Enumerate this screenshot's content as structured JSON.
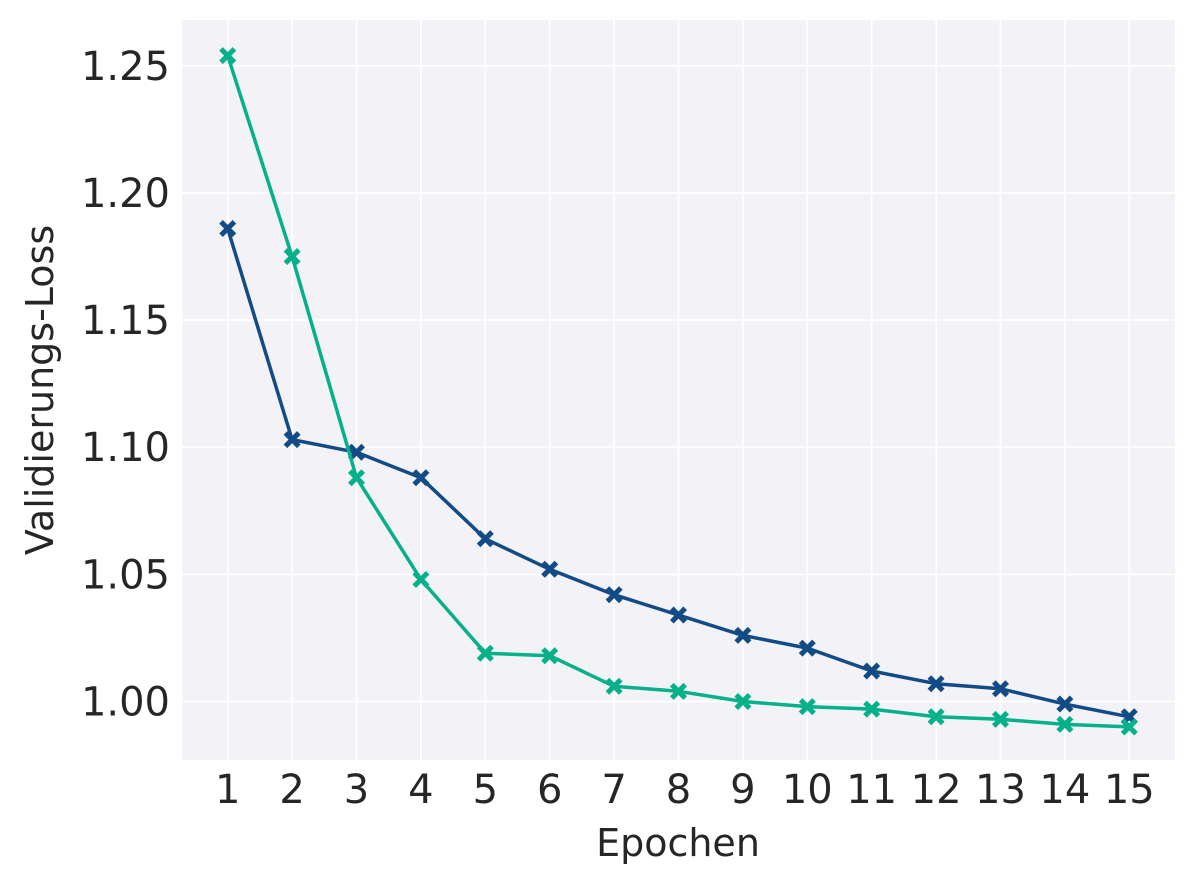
{
  "chart_data": {
    "type": "line",
    "xlabel": "Epochen",
    "ylabel": "Validierungs-Loss",
    "x": [
      1,
      2,
      3,
      4,
      5,
      6,
      7,
      8,
      9,
      10,
      11,
      12,
      13,
      14,
      15
    ],
    "xticks": [
      "1",
      "2",
      "3",
      "4",
      "5",
      "6",
      "7",
      "8",
      "9",
      "10",
      "11",
      "12",
      "13",
      "14",
      "15"
    ],
    "yticks": [
      "1.00",
      "1.05",
      "1.10",
      "1.15",
      "1.20",
      "1.25"
    ],
    "ylim": [
      0.977,
      1.268
    ],
    "xlim": [
      0.29,
      15.71
    ],
    "grid": true,
    "background": "#f2f2f7",
    "series": [
      {
        "color": "#134b86",
        "marker": "X",
        "values": [
          1.186,
          1.103,
          1.098,
          1.088,
          1.064,
          1.052,
          1.042,
          1.034,
          1.026,
          1.021,
          1.012,
          1.007,
          1.005,
          0.999,
          0.994
        ]
      },
      {
        "color": "#05b08a",
        "marker": "X",
        "values": [
          1.254,
          1.175,
          1.088,
          1.048,
          1.019,
          1.018,
          1.006,
          1.004,
          1.0,
          0.998,
          0.997,
          0.994,
          0.993,
          0.991,
          0.99
        ]
      }
    ]
  }
}
